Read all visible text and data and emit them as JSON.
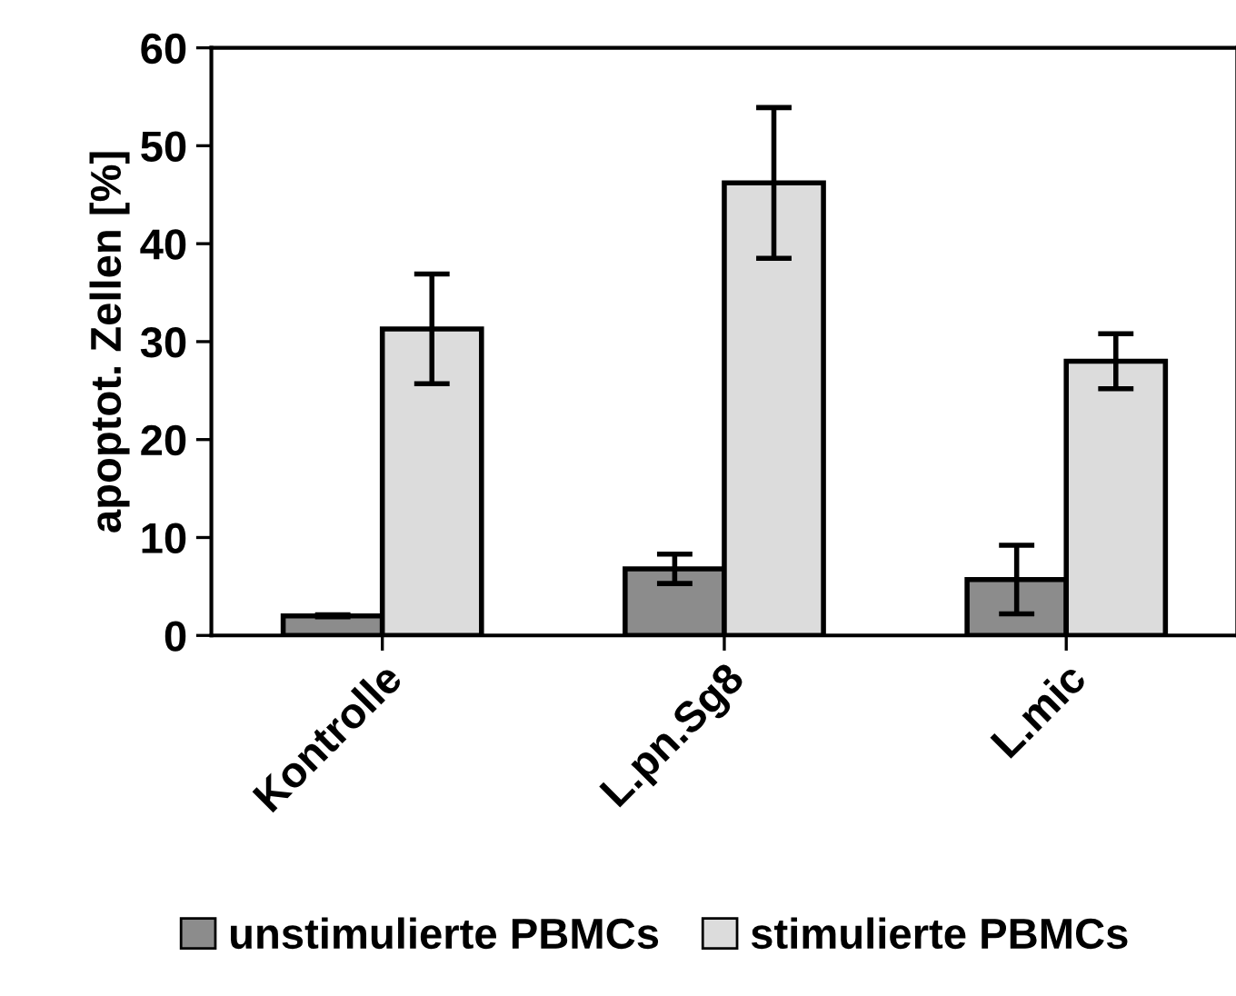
{
  "chart_data": {
    "type": "bar",
    "ylabel": "apoptot. Zellen [%]",
    "categories": [
      "Kontrolle",
      "L.pn.Sg8",
      "L.mic"
    ],
    "series": [
      {
        "name": "unstimulierte PBMCs",
        "color": "#8c8c8c",
        "values": [
          2.0,
          6.8,
          5.7
        ],
        "errors": [
          0.1,
          1.5,
          3.5
        ]
      },
      {
        "name": "stimulierte PBMCs",
        "color": "#dcdcdc",
        "values": [
          31.3,
          46.2,
          28.0
        ],
        "errors": [
          5.6,
          7.7,
          2.8
        ]
      }
    ],
    "ylim": [
      0,
      60
    ],
    "yticks": [
      0,
      10,
      20,
      30,
      40,
      50,
      60
    ],
    "grid": false,
    "legend": "bottom"
  }
}
